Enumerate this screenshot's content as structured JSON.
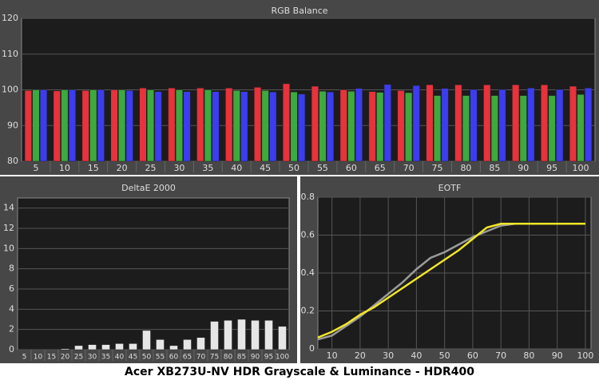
{
  "page_title": "Acer XB273U-NV HDR Grayscale & Luminance - HDR400",
  "chart_data": [
    {
      "type": "bar",
      "title": "RGB Balance",
      "categories": [
        "5",
        "10",
        "15",
        "20",
        "25",
        "30",
        "35",
        "40",
        "45",
        "50",
        "55",
        "60",
        "65",
        "70",
        "75",
        "80",
        "85",
        "90",
        "95",
        "100"
      ],
      "series": [
        {
          "color": "#e8323c",
          "values": [
            99.8,
            99.7,
            99.8,
            100,
            100.5,
            100.5,
            100.5,
            100.5,
            100.7,
            101.7,
            101,
            100,
            99.5,
            99.8,
            101.4,
            101.4,
            101.4,
            101.4,
            101.4,
            101
          ]
        },
        {
          "color": "#3caa3c",
          "values": [
            100,
            100,
            100,
            100,
            100,
            100,
            100,
            99.8,
            99.8,
            99.4,
            99.6,
            99.6,
            99.3,
            99.2,
            98.4,
            98.4,
            98.4,
            98.4,
            98.4,
            98.7
          ]
        },
        {
          "color": "#3c3cf0",
          "values": [
            100,
            100,
            100,
            99.8,
            99.5,
            99.5,
            99.5,
            99.5,
            99.4,
            98.8,
            99.4,
            100.4,
            101.5,
            101.2,
            100.4,
            100.1,
            100.1,
            100.5,
            100.1,
            100.5
          ]
        }
      ],
      "ylim": [
        80,
        120
      ],
      "yticks": [
        80,
        90,
        100,
        110,
        120
      ],
      "grid": true
    },
    {
      "type": "bar",
      "title": "DeltaE 2000",
      "categories": [
        "5",
        "10",
        "15",
        "20",
        "25",
        "30",
        "35",
        "40",
        "45",
        "50",
        "55",
        "60",
        "65",
        "70",
        "75",
        "80",
        "85",
        "90",
        "95",
        "100"
      ],
      "series": [
        {
          "color": "#e6e6e6",
          "values": [
            0,
            0,
            0,
            0.1,
            0.4,
            0.5,
            0.5,
            0.6,
            0.6,
            1.9,
            1.0,
            0.4,
            1.0,
            1.2,
            2.8,
            2.9,
            3.0,
            2.9,
            2.9,
            2.3
          ]
        }
      ],
      "ylim": [
        0,
        15
      ],
      "yticks": [
        0,
        2,
        4,
        6,
        8,
        10,
        12,
        14
      ],
      "grid": true
    },
    {
      "type": "line",
      "title": "EOTF",
      "x": [
        5,
        10,
        15,
        20,
        25,
        30,
        35,
        40,
        45,
        50,
        55,
        60,
        65,
        70,
        75,
        80,
        85,
        90,
        95,
        100
      ],
      "series": [
        {
          "color": "#9a9a9a",
          "values": [
            0.05,
            0.07,
            0.12,
            0.17,
            0.23,
            0.29,
            0.35,
            0.42,
            0.48,
            0.51,
            0.55,
            0.59,
            0.62,
            0.65,
            0.66,
            0.66,
            0.66,
            0.66,
            0.66,
            0.66
          ]
        },
        {
          "color": "#f0e628",
          "values": [
            0.06,
            0.09,
            0.13,
            0.18,
            0.22,
            0.27,
            0.32,
            0.37,
            0.42,
            0.47,
            0.52,
            0.58,
            0.64,
            0.66,
            0.66,
            0.66,
            0.66,
            0.66,
            0.66,
            0.66
          ]
        }
      ],
      "xlim": [
        5,
        102
      ],
      "xticks": [
        10,
        20,
        30,
        40,
        50,
        60,
        70,
        80,
        90,
        100
      ],
      "ylim": [
        0,
        0.8
      ],
      "yticks": [
        0,
        0.2,
        0.4,
        0.6,
        0.8
      ],
      "grid": true
    }
  ]
}
